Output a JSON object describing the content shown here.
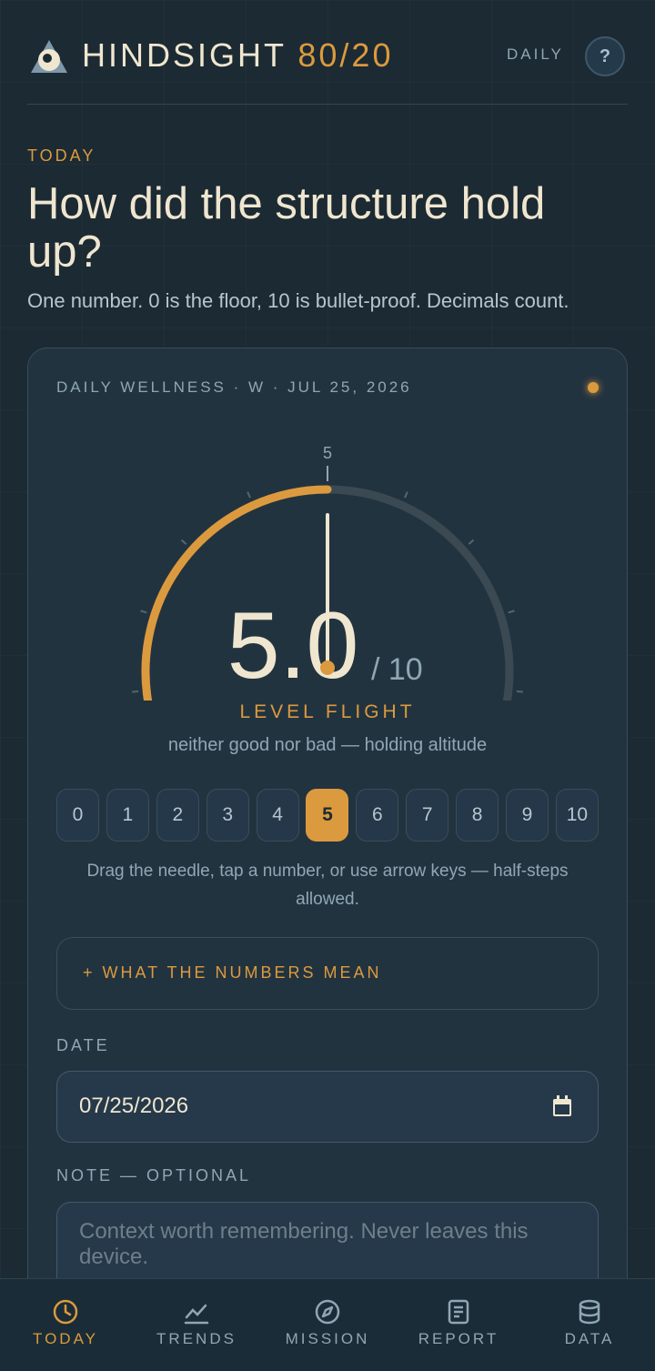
{
  "header": {
    "brand": "HINDSIGHT",
    "brand_accent": "80/20",
    "mode": "DAILY",
    "help": "?"
  },
  "intro": {
    "eyebrow": "TODAY",
    "title": "How did the structure hold up?",
    "subtitle": "One number. 0 is the floor, 10 is bullet-proof. Decimals count."
  },
  "card": {
    "meta": "DAILY WELLNESS · W · JUL 25, 2026",
    "gauge": {
      "value": 5,
      "top_label": "5",
      "value_label": "5.0",
      "max_label": "/ 10",
      "mood": "LEVEL FLIGHT",
      "description": "neither good nor bad — holding altitude"
    },
    "scale": [
      0,
      1,
      2,
      3,
      4,
      5,
      6,
      7,
      8,
      9,
      10
    ],
    "selected": 5,
    "hint": "Drag the needle, tap a number, or use arrow keys — half-steps allowed.",
    "expander": "+ WHAT THE NUMBERS MEAN",
    "date_label": "DATE",
    "date_value": "07/25/2026",
    "note_label": "NOTE — OPTIONAL",
    "note_placeholder": "Context worth remembering. Never leaves this device."
  },
  "nav": {
    "items": [
      "TODAY",
      "TRENDS",
      "MISSION",
      "REPORT",
      "DATA"
    ],
    "active": 0
  }
}
